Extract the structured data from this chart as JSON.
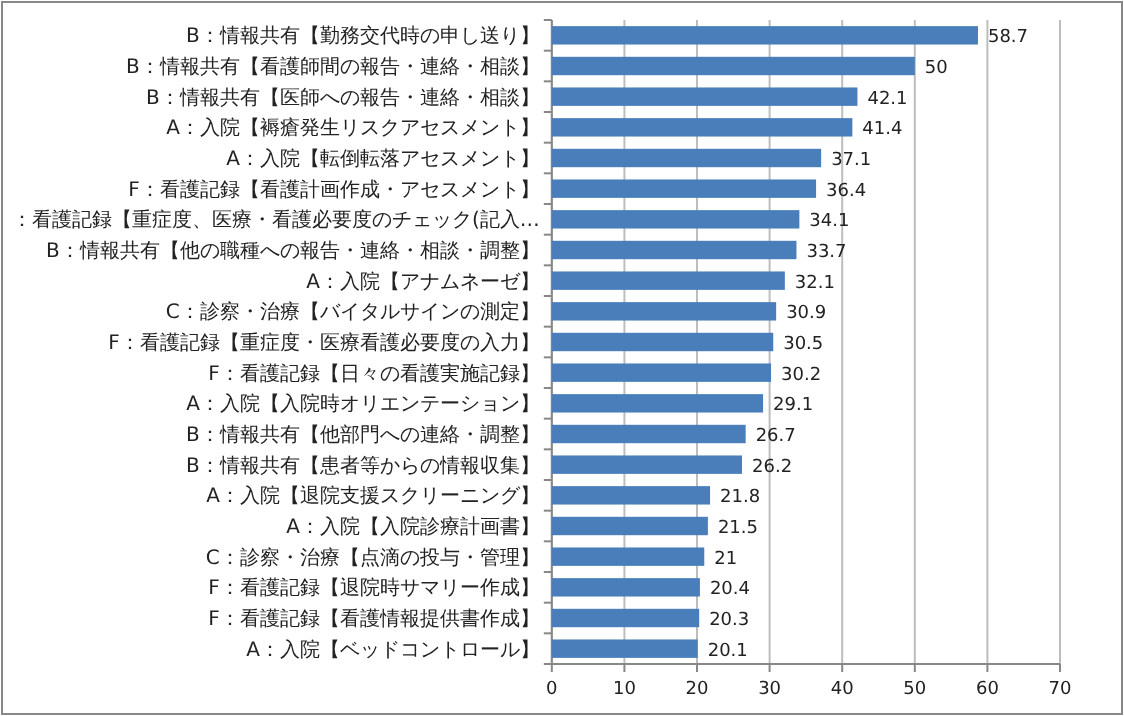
{
  "chart_data": {
    "type": "bar",
    "orientation": "horizontal",
    "categories": [
      "B：情報共有【勤務交代時の申し送り】",
      "B：情報共有【看護師間の報告・連絡・相談】",
      "B：情報共有【医師への報告・連絡・相談】",
      "A：入院【褥瘡発生リスクアセスメント】",
      "A：入院【転倒転落アセスメント】",
      "F：看護記録【看護計画作成・アセスメント】",
      "：看護記録【重症度、医療・看護必要度のチェック(記入…",
      "B：情報共有【他の職種への報告・連絡・相談・調整】",
      "A：入院【アナムネーゼ】",
      "C：診察・治療【バイタルサインの測定】",
      "F：看護記録【重症度・医療看護必要度の入力】",
      "F：看護記録【日々の看護実施記録】",
      "A：入院【入院時オリエンテーション】",
      "B：情報共有【他部門への連絡・調整】",
      "B：情報共有【患者等からの情報収集】",
      "A：入院【退院支援スクリーニング】",
      "A：入院【入院診療計画書】",
      "C：診察・治療【点滴の投与・管理】",
      "F：看護記録【退院時サマリー作成】",
      "F：看護記録【看護情報提供書作成】",
      "A：入院【ベッドコントロール】"
    ],
    "values": [
      58.7,
      50,
      42.1,
      41.4,
      37.1,
      36.4,
      34.1,
      33.7,
      32.1,
      30.9,
      30.5,
      30.2,
      29.1,
      26.7,
      26.2,
      21.8,
      21.5,
      21,
      20.4,
      20.3,
      20.1
    ],
    "color": "#4a7ebb",
    "data_labels": true,
    "grid": "x",
    "xlim": [
      0,
      70
    ],
    "xticks": [
      0,
      10,
      20,
      30,
      40,
      50,
      60,
      70
    ]
  }
}
